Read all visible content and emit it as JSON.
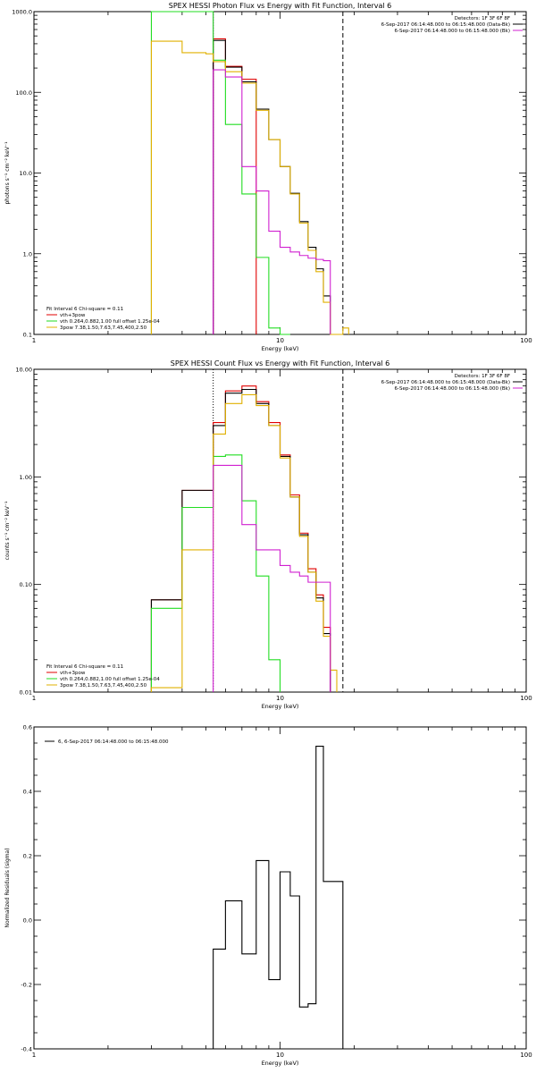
{
  "colors": {
    "black": "#000000",
    "red": "#e00000",
    "green": "#22dd22",
    "yellow": "#e0b000",
    "magenta": "#d020d0"
  },
  "chart_data": [
    {
      "type": "line",
      "subtype": "step-histogram",
      "title": "SPEX HESSI Photon Flux vs Energy with Fit Function, Interval 6",
      "xlabel": "Energy (keV)",
      "ylabel": "photons s⁻¹ cm⁻² keV⁻¹",
      "xscale": "log",
      "yscale": "log",
      "xlim": [
        1,
        100
      ],
      "ylim": [
        0.1,
        1000
      ],
      "xticks": [
        {
          "v": 1,
          "label": "1"
        },
        {
          "v": 10,
          "label": "10"
        },
        {
          "v": 100,
          "label": "100"
        }
      ],
      "yticks": [
        {
          "v": 0.1,
          "label": "0.1"
        },
        {
          "v": 1,
          "label": "1.0"
        },
        {
          "v": 10,
          "label": "10.0"
        },
        {
          "v": 100,
          "label": "100.0"
        },
        {
          "v": 1000,
          "label": "1000.0"
        }
      ],
      "vlines": [
        {
          "x": 5.35,
          "style": "dotted",
          "color": "black"
        },
        {
          "x": 5.35,
          "style": "solid",
          "color": "magenta"
        },
        {
          "x": 18,
          "style": "dashed",
          "color": "black"
        }
      ],
      "edges": [
        3,
        4,
        5,
        5.35,
        6,
        7,
        8,
        9,
        10,
        11,
        12,
        13,
        14,
        15,
        16,
        17,
        18,
        19,
        20
      ],
      "series": [
        {
          "name": "vth+3pow",
          "color": "red",
          "values": [
            null,
            null,
            null,
            460,
            210,
            145,
            null,
            null,
            null,
            null,
            null,
            null,
            null,
            null,
            null,
            null,
            null,
            null
          ]
        },
        {
          "name": "Total",
          "color": "black",
          "values": [
            null,
            null,
            null,
            440,
            205,
            135,
            62,
            26,
            12,
            5.6,
            2.5,
            1.2,
            0.65,
            0.3,
            null,
            null,
            null,
            null
          ]
        },
        {
          "name": "vth 0.264,0.882,1.00 full offset 1.25e-04",
          "color": "green",
          "values": [
            1000,
            1000,
            1000,
            250,
            40,
            5.5,
            0.9,
            0.12,
            0.08,
            null,
            null,
            null,
            null,
            null,
            null,
            null,
            null,
            null
          ]
        },
        {
          "name": "3pow 7.38,1.50,7.63,7.45,400,2.50",
          "color": "yellow",
          "values": [
            430,
            310,
            300,
            240,
            180,
            130,
            60,
            26,
            12,
            5.5,
            2.4,
            1.1,
            0.6,
            0.25,
            0.1,
            0.1,
            0.12,
            null
          ]
        },
        {
          "name": "6-Sep-2017 06:14:48.000 to 06:15:48.000 (Bk)",
          "color": "magenta",
          "values": [
            null,
            null,
            null,
            190,
            155,
            12,
            6,
            1.9,
            1.2,
            1.05,
            0.95,
            0.88,
            0.85,
            0.82,
            null,
            null,
            null,
            null
          ]
        }
      ],
      "legend_top_right": [
        "Detectors: 1F 3F 6F 8F",
        "6-Sep-2017 06:14:48.000 to 06:15:48.000 (Data-Bk)",
        "6-Sep-2017 06:14:48.000 to 06:15:48.000 (Bk)"
      ],
      "legend_bottom_left": [
        "Fit Interval 6   Chi-square = 0.11",
        "vth+3pow",
        "vth 0.264,0.882,1.00  full offset 1.25e-04",
        "3pow 7.38,1.50,7.63,7.45,400,2.50"
      ]
    },
    {
      "type": "line",
      "subtype": "step-histogram",
      "title": "SPEX HESSI Count Flux vs Energy with Fit Function, Interval 6",
      "xlabel": "Energy (keV)",
      "ylabel": "counts s⁻¹ cm⁻² keV⁻¹",
      "xscale": "log",
      "yscale": "log",
      "xlim": [
        1,
        100
      ],
      "ylim": [
        0.01,
        10
      ],
      "xticks": [
        {
          "v": 1,
          "label": "1"
        },
        {
          "v": 10,
          "label": "10"
        },
        {
          "v": 100,
          "label": "100"
        }
      ],
      "yticks": [
        {
          "v": 0.01,
          "label": "0.01"
        },
        {
          "v": 0.1,
          "label": "0.10"
        },
        {
          "v": 1,
          "label": "1.00"
        },
        {
          "v": 10,
          "label": "10.00"
        }
      ],
      "vlines": [
        {
          "x": 5.35,
          "style": "dotted",
          "color": "black"
        },
        {
          "x": 18,
          "style": "dashed",
          "color": "black"
        }
      ],
      "edges": [
        3,
        4,
        5,
        5.35,
        6,
        7,
        8,
        9,
        10,
        11,
        12,
        13,
        14,
        15,
        16,
        17,
        18,
        19,
        20
      ],
      "series": [
        {
          "name": "vth+3pow",
          "color": "red",
          "values": [
            0.072,
            0.75,
            0.75,
            3.2,
            6.3,
            7.0,
            5.0,
            3.2,
            1.6,
            0.68,
            0.3,
            0.14,
            0.08,
            0.04,
            null,
            null,
            null,
            null
          ]
        },
        {
          "name": "Total",
          "color": "black",
          "values": [
            0.072,
            0.75,
            0.75,
            3.0,
            6.0,
            6.5,
            4.8,
            3.0,
            1.55,
            0.65,
            0.29,
            0.13,
            0.075,
            0.035,
            null,
            null,
            null,
            null
          ]
        },
        {
          "name": "vth 0.264,0.882,1.00 full offset 1.25e-04",
          "color": "green",
          "values": [
            0.06,
            0.52,
            0.52,
            1.55,
            1.6,
            0.6,
            0.12,
            0.02,
            null,
            null,
            null,
            null,
            null,
            null,
            null,
            null,
            null,
            null
          ]
        },
        {
          "name": "3pow 7.38,1.50,7.63,7.45,400,2.50",
          "color": "yellow",
          "values": [
            0.011,
            0.21,
            0.21,
            2.5,
            4.8,
            5.8,
            4.6,
            3.0,
            1.5,
            0.65,
            0.28,
            0.13,
            0.07,
            0.033,
            0.016,
            null,
            null,
            null
          ]
        },
        {
          "name": "6-Sep-2017 06:14:48.000 to 06:15:48.000 (Bk)",
          "color": "magenta",
          "values": [
            null,
            null,
            null,
            1.28,
            1.28,
            0.36,
            0.21,
            0.21,
            0.15,
            0.13,
            0.12,
            0.105,
            0.105,
            0.105,
            null,
            null,
            null,
            null
          ]
        }
      ],
      "legend_top_right": [
        "Detectors: 1F 3F 6F 8F",
        "6-Sep-2017 06:14:48.000 to 06:15:48.000 (Data-Bk)",
        "6-Sep-2017 06:14:48.000 to 06:15:48.000 (Bk)"
      ],
      "legend_bottom_left": [
        "Fit Interval 6   Chi-square = 0.11",
        "vth+3pow",
        "vth 0.264,0.882,1.00  full offset 1.25e-04",
        "3pow 7.38,1.50,7.63,7.45,400,2.50"
      ]
    },
    {
      "type": "line",
      "subtype": "step-histogram",
      "title": "",
      "xlabel": "Energy (keV)",
      "ylabel": "Normalized Residuals (sigma)",
      "xscale": "log",
      "yscale": "linear",
      "xlim": [
        1,
        100
      ],
      "ylim": [
        -0.4,
        0.6
      ],
      "xticks": [
        {
          "v": 1,
          "label": "1"
        },
        {
          "v": 10,
          "label": "10"
        },
        {
          "v": 100,
          "label": "100"
        }
      ],
      "yticks": [
        {
          "v": -0.4,
          "label": "-0.4"
        },
        {
          "v": -0.2,
          "label": "-0.2"
        },
        {
          "v": 0,
          "label": "0.0"
        },
        {
          "v": 0.2,
          "label": "0.2"
        },
        {
          "v": 0.4,
          "label": "0.4"
        },
        {
          "v": 0.6,
          "label": "0.6"
        }
      ],
      "edges": [
        5.35,
        6,
        7,
        8,
        9,
        10,
        11,
        12,
        13,
        14,
        15,
        16,
        18
      ],
      "series": [
        {
          "name": "6,  6-Sep-2017 06:14:48.000 to 06:15:48.000",
          "color": "black",
          "values": [
            -0.09,
            0.06,
            -0.105,
            0.185,
            -0.185,
            0.15,
            0.075,
            -0.27,
            -0.26,
            0.54,
            0.12,
            0.12
          ]
        }
      ],
      "legend_top_left": [
        "6,  6-Sep-2017 06:14:48.000 to 06:15:48.000"
      ]
    }
  ]
}
